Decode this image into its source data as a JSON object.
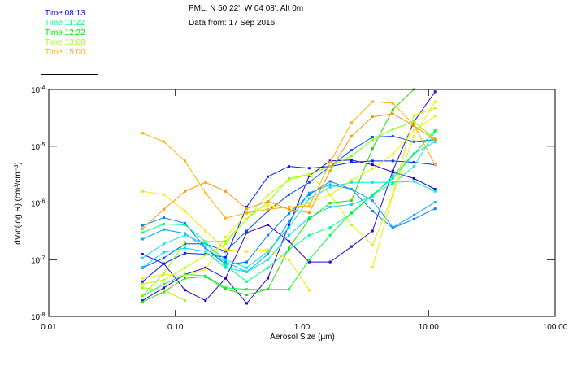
{
  "header": {
    "line1": "PML, N 50 22', W 04 08', Alt 0m",
    "line2": "Data from: 17 Sep 2016"
  },
  "legend": [
    {
      "label": "Time 08:13",
      "color": "#0000ff"
    },
    {
      "label": "Time 11:22",
      "color": "#00ff80"
    },
    {
      "label": "Time 12:22",
      "color": "#00e000"
    },
    {
      "label": "Time 13:08",
      "color": "#a0ff00"
    },
    {
      "label": "Time 15:00",
      "color": "#ffb000"
    }
  ],
  "chart_data": {
    "type": "line",
    "xlabel": "Aerosol Size (µm)",
    "ylabel": "dV/d(log R) (cm³/cm⁻³)",
    "xscale": "log",
    "yscale": "log",
    "xlim": [
      0.01,
      100
    ],
    "ylim": [
      1e-08,
      0.0001
    ],
    "xticks": [
      {
        "value": 0.01,
        "label": "0.01"
      },
      {
        "value": 0.1,
        "label": "0.10"
      },
      {
        "value": 1,
        "label": "1.00"
      },
      {
        "value": 10,
        "label": "10.00"
      },
      {
        "value": 100,
        "label": "100.00"
      }
    ],
    "yticks": [
      {
        "value": 0.0001,
        "base": "10",
        "exp": "-4"
      },
      {
        "value": 1e-05,
        "base": "10",
        "exp": "-5"
      },
      {
        "value": 1e-06,
        "base": "10",
        "exp": "-6"
      },
      {
        "value": 1e-07,
        "base": "10",
        "exp": "-7"
      },
      {
        "value": 1e-08,
        "base": "10",
        "exp": "-8"
      }
    ],
    "x": [
      0.055,
      0.081,
      0.119,
      0.173,
      0.249,
      0.366,
      0.538,
      0.789,
      1.14,
      1.67,
      2.46,
      3.61,
      5.22,
      7.67,
      11.25
    ],
    "series": [
      {
        "color": "#0020ff",
        "values": [
          4.1e-08,
          8.5e-08,
          1.3e-07,
          1.25e-07,
          1.1e-07,
          8.5e-07,
          2.9e-06,
          4.4e-06,
          4.1e-06,
          4.4e-06,
          5.2e-06,
          5.5e-06,
          5.5e-06,
          5.2e-06,
          4.7e-06
        ]
      },
      {
        "color": "#3000e0",
        "values": [
          1.25e-07,
          8.5e-08,
          2.9e-08,
          1.9e-08,
          4.7e-08,
          3e-07,
          4.1e-07,
          2.1e-07,
          9.1e-08,
          9.1e-08,
          1.7e-07,
          3.2e-07,
          3.7e-06,
          2.7e-05,
          9.1e-05
        ]
      },
      {
        "color": "#2800d0",
        "values": [
          1.9e-08,
          3.2e-08,
          5.5e-08,
          7.2e-08,
          4.7e-08,
          1.7e-08,
          4.7e-08,
          4.1e-07,
          3e-06,
          5.5e-06,
          5.7e-06,
          4.7e-06,
          3.5e-06,
          2.7e-06,
          1.75e-06
        ]
      },
      {
        "color": "#0050ff",
        "values": [
          7.2e-08,
          1.07e-07,
          1.9e-07,
          1.9e-07,
          1.4e-07,
          3.2e-07,
          7.2e-07,
          1.4e-06,
          2.3e-06,
          4.4e-06,
          8.5e-06,
          1.45e-05,
          1.5e-05,
          1.2e-05,
          1.3e-05
        ]
      },
      {
        "color": "#0080ff",
        "values": [
          4e-07,
          5.5e-07,
          4.4e-07,
          1.6e-07,
          8.2e-08,
          9.1e-08,
          2.7e-07,
          6.5e-07,
          1.4e-06,
          2.4e-06,
          1.75e-06,
          7.2e-07,
          3.6e-07,
          5.2e-07,
          7.9e-07
        ]
      },
      {
        "color": "#00a8ff",
        "values": [
          2.3e-07,
          3.4e-07,
          2.9e-07,
          1.6e-07,
          9.1e-08,
          6.1e-08,
          1.25e-07,
          4.7e-07,
          1.5e-06,
          2.1e-06,
          1.75e-06,
          1.1e-06,
          3.7e-07,
          6.1e-07,
          1.03e-06
        ]
      },
      {
        "color": "#00d8ff",
        "values": [
          7.4e-08,
          1.35e-07,
          1.6e-07,
          1.4e-07,
          7.2e-08,
          6.1e-08,
          1e-07,
          2.7e-07,
          5.5e-07,
          8.5e-07,
          9.4e-07,
          1.3e-06,
          3e-06,
          7.4e-06,
          1.2e-05
        ]
      },
      {
        "color": "#00e8e8",
        "values": [
          1.07e-07,
          1.9e-07,
          2.7e-07,
          1.9e-07,
          1e-07,
          7.2e-08,
          1.4e-07,
          3.7e-07,
          1.2e-06,
          1.9e-06,
          2.3e-06,
          2.3e-06,
          2.3e-06,
          2.4e-06,
          1.6e-06
        ]
      },
      {
        "color": "#00ff90",
        "values": [
          3e-07,
          4.25e-07,
          4.1e-07,
          2.1e-07,
          7.9e-08,
          4.1e-08,
          7.2e-08,
          1.5e-07,
          2.7e-07,
          3.7e-07,
          6.5e-07,
          1.4e-06,
          2.2e-06,
          4.4e-06,
          1.8e-05
        ]
      },
      {
        "color": "#00ff40",
        "values": [
          2.3e-08,
          3.7e-08,
          5.5e-08,
          5.2e-08,
          3.2e-08,
          3e-08,
          3e-08,
          3e-08,
          1e-07,
          2.7e-07,
          6.7e-07,
          1.4e-06,
          2.7e-06,
          7.2e-06,
          1.9e-05
        ]
      },
      {
        "color": "#20e000",
        "values": [
          1.8e-08,
          2.7e-08,
          4.7e-08,
          5e-08,
          3e-08,
          2.4e-08,
          3e-08,
          1.6e-07,
          5.2e-07,
          1e-06,
          1.1e-06,
          9.1e-06,
          4.4e-05,
          0.0001,
          null
        ]
      },
      {
        "color": "#80ff00",
        "values": [
          2.3e-08,
          5.7e-08,
          2.05e-07,
          2.1e-07,
          2.1e-07,
          5.2e-07,
          1.03e-06,
          2.7e-06,
          3.2e-06,
          4.4e-06,
          6.7e-06,
          1.3e-05,
          2e-05,
          2.7e-05,
          1.35e-05
        ]
      },
      {
        "color": "#a0ff00",
        "values": [
          3.2e-08,
          2.9e-08,
          1.9e-08,
          null,
          null,
          null,
          null,
          null,
          null,
          null,
          null,
          null,
          null,
          null,
          null
        ]
      },
      {
        "color": "#c0ff00",
        "values": [
          3.7e-08,
          4.4e-08,
          7.2e-08,
          1.2e-07,
          1.9e-07,
          5.2e-07,
          1.4e-06,
          2.5e-06,
          3.2e-06,
          1.4e-06,
          4.1e-07,
          1.8e-07,
          1.4e-06,
          3.5e-05,
          4.7e-05
        ]
      },
      {
        "color": "#f0f000",
        "values": [
          4.7e-08,
          5.5e-08,
          5.2e-08,
          6.7e-08,
          2.5e-07,
          6.5e-07,
          9.1e-07,
          7.9e-07,
          1e-06,
          1.4e-06,
          2.5e-06,
          4e-06,
          7.2e-06,
          1.9e-05,
          3.4e-05
        ]
      },
      {
        "color": "#ffe000",
        "values": [
          1.6e-06,
          1.4e-06,
          7.2e-07,
          3.2e-07,
          1.5e-07,
          1.4e-07,
          1.5e-07,
          1e-07,
          2.9e-08,
          null,
          null,
          null,
          null,
          null,
          null
        ]
      },
      {
        "color": "#ffe800",
        "values": [
          null,
          null,
          null,
          null,
          null,
          null,
          null,
          null,
          null,
          null,
          null,
          7.4e-08,
          1.4e-06,
          1.5e-05,
          6.1e-05
        ]
      },
      {
        "color": "#ffb000",
        "values": [
          1.7e-05,
          1.2e-05,
          5.5e-06,
          1.5e-06,
          5.4e-07,
          6.7e-07,
          7.7e-07,
          8.5e-07,
          8.8e-07,
          5.2e-06,
          2.6e-05,
          6.1e-05,
          5.7e-05,
          2.4e-05,
          4.7e-06
        ]
      },
      {
        "color": "#ff9800",
        "values": [
          3.5e-07,
          7.7e-07,
          1.6e-06,
          2.3e-06,
          1.6e-06,
          7.9e-07,
          1.07e-06,
          7.7e-07,
          6.7e-07,
          3.7e-06,
          1.5e-05,
          3.3e-05,
          3.7e-05,
          2.3e-05,
          1.3e-05
        ]
      }
    ]
  }
}
